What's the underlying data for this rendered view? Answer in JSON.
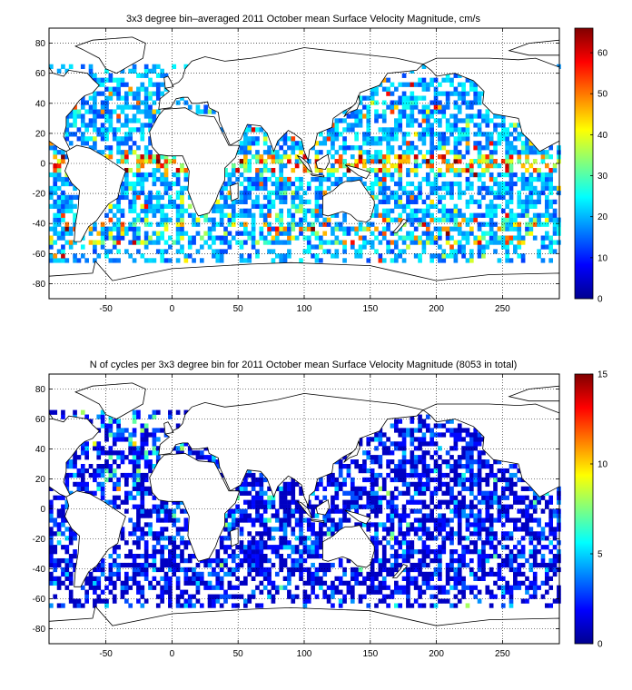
{
  "chart_data": [
    {
      "type": "heatmap",
      "title": "3x3 degree bin–averaged 2011 October mean Surface Velocity Magnitude, cm/s",
      "xlabel": "",
      "ylabel": "",
      "xlim": [
        -93,
        293
      ],
      "ylim": [
        -90,
        90
      ],
      "x_ticks": [
        -50,
        0,
        50,
        100,
        150,
        200,
        250
      ],
      "y_ticks": [
        80,
        60,
        40,
        20,
        0,
        -20,
        -40,
        -60,
        -80
      ],
      "grid": true,
      "grid_style": "dotted",
      "bin_size_deg": 3,
      "colorbar": {
        "range": [
          0,
          66
        ],
        "ticks": [
          0,
          10,
          20,
          30,
          40,
          50,
          60
        ],
        "colormap": "jet"
      },
      "seed": 11,
      "field": "velocity"
    },
    {
      "type": "heatmap",
      "title": "N of cycles per 3x3 degree bin for 2011 October mean Surface Velocity Magnitude (8053 in total)",
      "xlabel": "",
      "ylabel": "",
      "xlim": [
        -93,
        293
      ],
      "ylim": [
        -90,
        90
      ],
      "x_ticks": [
        -50,
        0,
        50,
        100,
        150,
        200,
        250
      ],
      "y_ticks": [
        80,
        60,
        40,
        20,
        0,
        -20,
        -40,
        -60,
        -80
      ],
      "grid": true,
      "grid_style": "dotted",
      "bin_size_deg": 3,
      "colorbar": {
        "range": [
          0,
          15
        ],
        "ticks": [
          0,
          5,
          10,
          15
        ],
        "colormap": "jet"
      },
      "seed": 29,
      "field": "count"
    }
  ]
}
